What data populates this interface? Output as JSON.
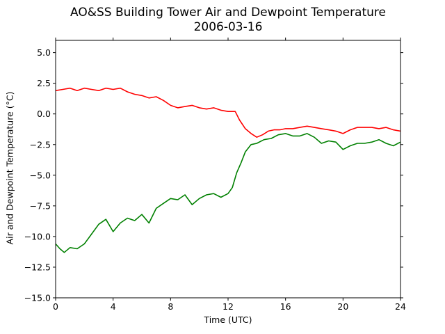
{
  "chart_data": {
    "type": "line",
    "title": "AO&SS Building Tower Air and Dewpoint Temperature",
    "subtitle": "2006-03-16",
    "xlabel": "Time (UTC)",
    "ylabel": "Air and Dewpoint Temperature (°C)",
    "xlim": [
      0,
      24
    ],
    "ylim": [
      -15.0,
      6.0
    ],
    "xticks": [
      0,
      4,
      8,
      12,
      16,
      20,
      24
    ],
    "xtick_labels": [
      "0",
      "4",
      "8",
      "12",
      "16",
      "20",
      "24"
    ],
    "yticks": [
      -15.0,
      -12.5,
      -10.0,
      -7.5,
      -5.0,
      -2.5,
      0.0,
      2.5,
      5.0
    ],
    "ytick_labels": [
      "−15.0",
      "−12.5",
      "−10.0",
      "−7.5",
      "−5.0",
      "−2.5",
      "0.0",
      "2.5",
      "5.0"
    ],
    "grid": false,
    "legend": "none",
    "series": [
      {
        "color": "#ff0000",
        "x": [
          0.0,
          0.5,
          1.0,
          1.5,
          2.0,
          2.5,
          3.0,
          3.5,
          4.0,
          4.5,
          5.0,
          5.5,
          6.0,
          6.5,
          7.0,
          7.5,
          8.0,
          8.5,
          9.0,
          9.5,
          10.0,
          10.5,
          11.0,
          11.5,
          12.0,
          12.5,
          12.8,
          13.2,
          13.6,
          14.0,
          14.4,
          14.8,
          15.2,
          15.6,
          16.0,
          16.5,
          17.0,
          17.5,
          18.0,
          18.5,
          19.0,
          19.5,
          20.0,
          20.5,
          21.0,
          21.5,
          22.0,
          22.5,
          23.0,
          23.5,
          24.0
        ],
        "y": [
          1.9,
          2.0,
          2.1,
          1.9,
          2.1,
          2.0,
          1.9,
          2.1,
          2.0,
          2.1,
          1.8,
          1.6,
          1.5,
          1.3,
          1.4,
          1.1,
          0.7,
          0.5,
          0.6,
          0.7,
          0.5,
          0.4,
          0.5,
          0.3,
          0.2,
          0.2,
          -0.5,
          -1.2,
          -1.6,
          -1.9,
          -1.7,
          -1.4,
          -1.3,
          -1.3,
          -1.2,
          -1.2,
          -1.1,
          -1.0,
          -1.1,
          -1.2,
          -1.3,
          -1.4,
          -1.6,
          -1.3,
          -1.1,
          -1.1,
          -1.1,
          -1.2,
          -1.1,
          -1.3,
          -1.4
        ]
      },
      {
        "color": "#008000",
        "x": [
          0.0,
          0.3,
          0.6,
          1.0,
          1.5,
          2.0,
          2.5,
          3.0,
          3.5,
          4.0,
          4.5,
          5.0,
          5.5,
          6.0,
          6.5,
          7.0,
          7.5,
          8.0,
          8.5,
          9.0,
          9.5,
          10.0,
          10.5,
          11.0,
          11.5,
          12.0,
          12.3,
          12.6,
          12.9,
          13.2,
          13.6,
          14.0,
          14.5,
          15.0,
          15.5,
          16.0,
          16.5,
          17.0,
          17.5,
          18.0,
          18.5,
          19.0,
          19.5,
          20.0,
          20.5,
          21.0,
          21.5,
          22.0,
          22.5,
          23.0,
          23.5,
          24.0
        ],
        "y": [
          -10.6,
          -11.0,
          -11.3,
          -10.9,
          -11.0,
          -10.6,
          -9.8,
          -9.0,
          -8.6,
          -9.6,
          -8.9,
          -8.5,
          -8.7,
          -8.2,
          -8.9,
          -7.7,
          -7.3,
          -6.9,
          -7.0,
          -6.6,
          -7.4,
          -6.9,
          -6.6,
          -6.5,
          -6.8,
          -6.5,
          -6.0,
          -4.8,
          -4.0,
          -3.1,
          -2.5,
          -2.4,
          -2.1,
          -2.0,
          -1.7,
          -1.6,
          -1.8,
          -1.8,
          -1.6,
          -1.9,
          -2.4,
          -2.2,
          -2.3,
          -2.9,
          -2.6,
          -2.4,
          -2.4,
          -2.3,
          -2.1,
          -2.4,
          -2.6,
          -2.3
        ]
      }
    ]
  }
}
